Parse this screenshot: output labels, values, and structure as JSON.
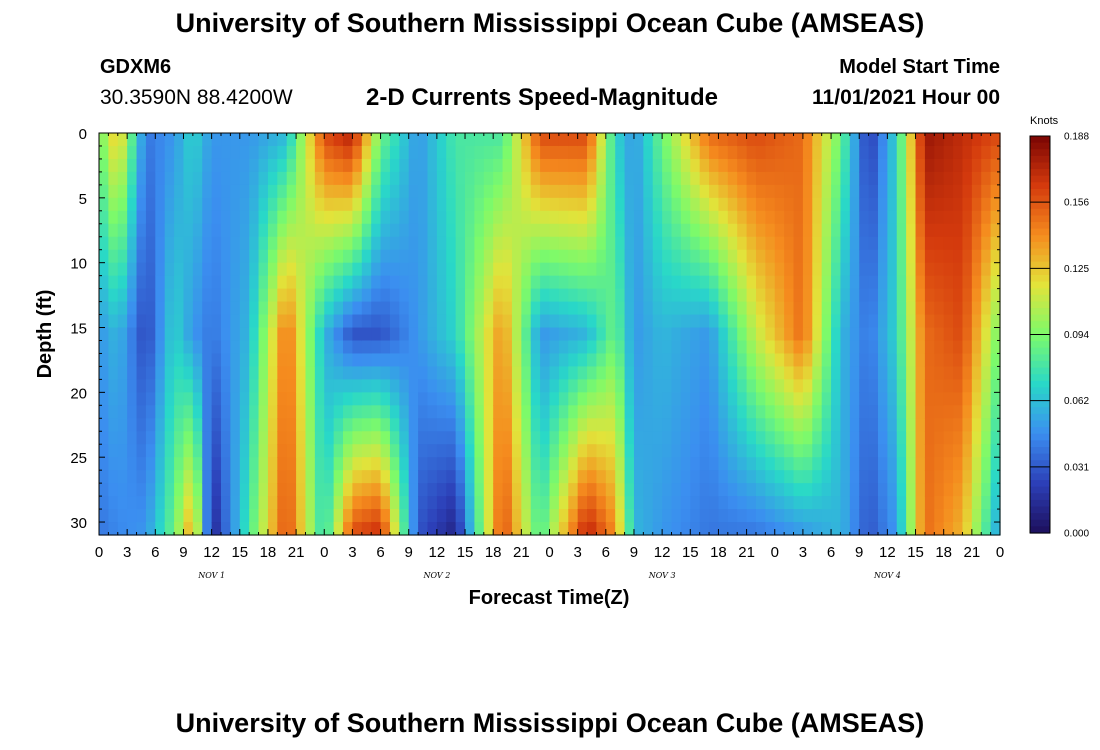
{
  "header": {
    "title": "University of Southern Mississippi Ocean Cube (AMSEAS)",
    "station": "GDXM6",
    "coordinates": "30.3590N  88.4200W",
    "product": "2-D Currents Speed-Magnitude",
    "start_label": "Model Start Time",
    "start_time": "11/01/2021 Hour 00"
  },
  "footer": {
    "title": "University of Southern Mississippi Ocean Cube (AMSEAS)"
  },
  "chart_data": {
    "type": "heatmap",
    "xlabel": "Forecast Time(Z)",
    "ylabel": "Depth (ft)",
    "xlim": [
      0,
      96
    ],
    "ylim": [
      31,
      0
    ],
    "x_tick_labels": [
      "0",
      "3",
      "6",
      "9",
      "12",
      "15",
      "18",
      "21",
      "0",
      "3",
      "6",
      "9",
      "12",
      "15",
      "18",
      "21",
      "0",
      "3",
      "6",
      "9",
      "12",
      "15",
      "18",
      "21",
      "0",
      "3",
      "6",
      "9",
      "12",
      "15",
      "18",
      "21",
      "0"
    ],
    "y_ticks": [
      0,
      5,
      10,
      15,
      20,
      25,
      30
    ],
    "day_labels": [
      "NOV 1",
      "NOV 2",
      "NOV 3",
      "NOV 4"
    ],
    "colorbar": {
      "title": "Knots",
      "min": 0.0,
      "max": 0.188,
      "tick_labels": [
        "0.000",
        "0.031",
        "0.062",
        "0.094",
        "0.125",
        "0.156",
        "0.188"
      ],
      "colors": [
        "#1d0f5c",
        "#2c3fb8",
        "#3b8ef0",
        "#29d8c8",
        "#7dfa6a",
        "#e2e33a",
        "#f58b1e",
        "#d43a0d",
        "#7a0403"
      ]
    },
    "speed_profiles_knots": [
      {
        "t": 0,
        "surface": 0.09,
        "mid": 0.05,
        "bottom": 0.04
      },
      {
        "t": 2,
        "surface": 0.13,
        "mid": 0.06,
        "bottom": 0.045
      },
      {
        "t": 5,
        "surface": 0.04,
        "mid": 0.025,
        "bottom": 0.05
      },
      {
        "t": 8,
        "surface": 0.05,
        "mid": 0.07,
        "bottom": 0.09
      },
      {
        "t": 10,
        "surface": 0.07,
        "mid": 0.05,
        "bottom": 0.14
      },
      {
        "t": 12,
        "surface": 0.05,
        "mid": 0.04,
        "bottom": 0.01
      },
      {
        "t": 16,
        "surface": 0.05,
        "mid": 0.06,
        "bottom": 0.08
      },
      {
        "t": 20,
        "surface": 0.06,
        "mid": 0.15,
        "bottom": 0.16
      },
      {
        "t": 24,
        "surface": 0.16,
        "mid": 0.06,
        "bottom": 0.07
      },
      {
        "t": 27,
        "surface": 0.175,
        "mid": 0.03,
        "bottom": 0.16
      },
      {
        "t": 30,
        "surface": 0.09,
        "mid": 0.03,
        "bottom": 0.17
      },
      {
        "t": 34,
        "surface": 0.05,
        "mid": 0.05,
        "bottom": 0.03
      },
      {
        "t": 38,
        "surface": 0.08,
        "mid": 0.07,
        "bottom": 0.01
      },
      {
        "t": 43,
        "surface": 0.08,
        "mid": 0.14,
        "bottom": 0.16
      },
      {
        "t": 47,
        "surface": 0.16,
        "mid": 0.05,
        "bottom": 0.08
      },
      {
        "t": 52,
        "surface": 0.16,
        "mid": 0.06,
        "bottom": 0.175
      },
      {
        "t": 55,
        "surface": 0.07,
        "mid": 0.09,
        "bottom": 0.14
      },
      {
        "t": 57,
        "surface": 0.05,
        "mid": 0.05,
        "bottom": 0.06
      },
      {
        "t": 60,
        "surface": 0.09,
        "mid": 0.06,
        "bottom": 0.05
      },
      {
        "t": 65,
        "surface": 0.15,
        "mid": 0.05,
        "bottom": 0.04
      },
      {
        "t": 70,
        "surface": 0.16,
        "mid": 0.11,
        "bottom": 0.04
      },
      {
        "t": 75,
        "surface": 0.15,
        "mid": 0.15,
        "bottom": 0.05
      },
      {
        "t": 79,
        "surface": 0.09,
        "mid": 0.06,
        "bottom": 0.06
      },
      {
        "t": 82,
        "surface": 0.02,
        "mid": 0.04,
        "bottom": 0.03
      },
      {
        "t": 85,
        "surface": 0.07,
        "mid": 0.07,
        "bottom": 0.05
      },
      {
        "t": 88,
        "surface": 0.18,
        "mid": 0.15,
        "bottom": 0.15
      },
      {
        "t": 92,
        "surface": 0.17,
        "mid": 0.16,
        "bottom": 0.13
      },
      {
        "t": 96,
        "surface": 0.16,
        "mid": 0.09,
        "bottom": 0.05
      }
    ]
  }
}
